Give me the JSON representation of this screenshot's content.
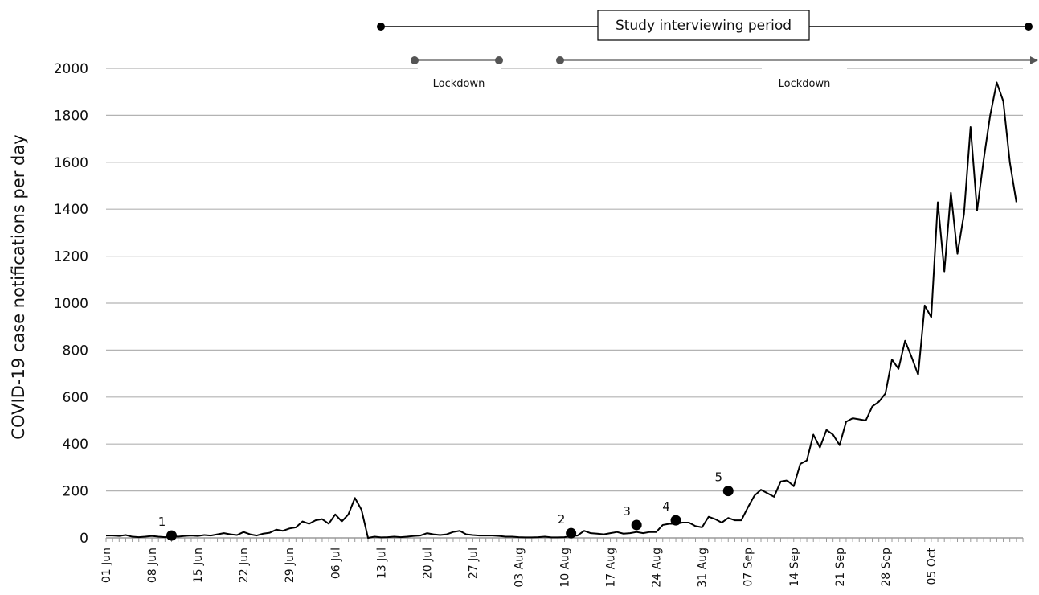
{
  "chart_data": {
    "type": "line",
    "title": "",
    "ylabel": "COVID-19 case notifications per day",
    "xlabel": "",
    "ylim": [
      0,
      2000
    ],
    "yticks": [
      0,
      200,
      400,
      600,
      800,
      1000,
      1200,
      1400,
      1600,
      1800,
      2000
    ],
    "grid": true,
    "x_start": "01 Jun",
    "x_tick_labels": [
      "01 Jun",
      "08 Jun",
      "15 Jun",
      "22 Jun",
      "29 Jun",
      "06 Jul",
      "13 Jul",
      "20 Jul",
      "27 Jul",
      "03 Aug",
      "10 Aug",
      "17 Aug",
      "24 Aug",
      "31 Aug",
      "07 Sep",
      "14 Sep",
      "21 Sep",
      "28 Sep",
      "05 Oct"
    ],
    "series": [
      {
        "name": "",
        "color": "#000000",
        "values": [
          10,
          10,
          8,
          12,
          5,
          3,
          5,
          8,
          5,
          3,
          8,
          5,
          8,
          10,
          8,
          12,
          10,
          15,
          20,
          15,
          12,
          25,
          15,
          10,
          18,
          22,
          35,
          30,
          40,
          45,
          70,
          60,
          75,
          80,
          60,
          100,
          70,
          100,
          170,
          120,
          0,
          5,
          2,
          3,
          5,
          3,
          5,
          8,
          10,
          20,
          15,
          12,
          15,
          25,
          30,
          15,
          12,
          10,
          10,
          10,
          8,
          5,
          5,
          3,
          2,
          2,
          3,
          5,
          2,
          2,
          3,
          8,
          10,
          30,
          20,
          18,
          15,
          20,
          25,
          18,
          20,
          25,
          20,
          25,
          25,
          55,
          60,
          60,
          65,
          65,
          50,
          45,
          90,
          80,
          65,
          85,
          75,
          75,
          130,
          180,
          205,
          190,
          175,
          240,
          245,
          220,
          315,
          330,
          440,
          385,
          460,
          440,
          395,
          495,
          510,
          505,
          500,
          560,
          580,
          615,
          760,
          720,
          840,
          770,
          695,
          990,
          940,
          1430,
          1135,
          1470,
          1210,
          1380,
          1750,
          1395,
          1610,
          1800,
          1940,
          1860,
          1600,
          1430
        ]
      }
    ],
    "annotations": {
      "study_period": "Study interviewing period",
      "lockdown_1": "Lockdown",
      "lockdown_2": "Lockdown",
      "markers": [
        {
          "label": "1",
          "day": 10,
          "value": 10
        },
        {
          "label": "2",
          "day": 71,
          "value": 20
        },
        {
          "label": "3",
          "day": 81,
          "value": 55
        },
        {
          "label": "4",
          "day": 87,
          "value": 75
        },
        {
          "label": "5",
          "day": 95,
          "value": 200
        }
      ]
    }
  }
}
